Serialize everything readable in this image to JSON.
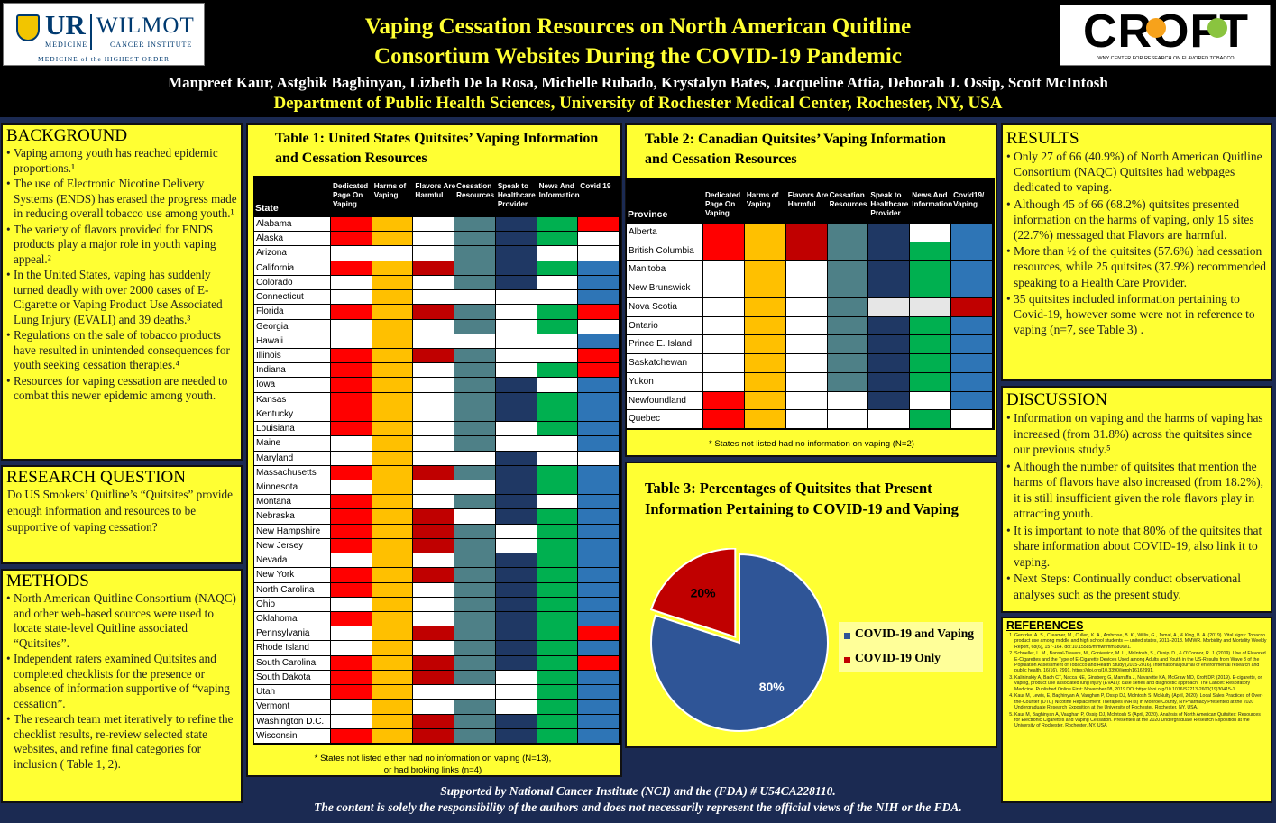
{
  "header": {
    "title_line1": "Vaping Cessation Resources on North American Quitline",
    "title_line2": "Consortium Websites During the COVID-19 Pandemic",
    "authors": "Manpreet Kaur, Astghik Baghinyan, Lizbeth De la Rosa, Michelle Rubado, Krystalyn Bates, Jacqueline Attia, Deborah J. Ossip, Scott McIntosh",
    "department": "Department of Public Health Sciences, University of Rochester Medical Center, Rochester, NY, USA",
    "logo_left": {
      "ur": "UR",
      "medicine": "MEDICINE",
      "wilmot": "WILMOT",
      "cancer": "CANCER INSTITUTE",
      "tagline": "MEDICINE of the HIGHEST ORDER"
    },
    "logo_right": {
      "name": "CROFT",
      "sub": "WNY CENTER FOR RESEARCH ON FLAVORED TOBACCO"
    }
  },
  "background": {
    "heading": "BACKGROUND",
    "items": [
      "Vaping among youth has reached epidemic proportions.¹",
      "The use of Electronic Nicotine Delivery Systems (ENDS) has erased the progress made in reducing overall tobacco use among youth.¹",
      "The variety of flavors provided for ENDS products play a major role in youth vaping appeal.²",
      "In the United States, vaping has suddenly turned deadly with over 2000 cases of E-Cigarette or Vaping Product Use Associated Lung Injury (EVALI) and 39 deaths.³",
      "Regulations on the sale of tobacco products have resulted in unintended consequences for youth seeking cessation therapies.⁴",
      "Resources for vaping cessation are needed to combat this newer epidemic among youth."
    ]
  },
  "research_question": {
    "heading": "RESEARCH QUESTION",
    "text": "Do US Smokers’ Quitline’s “Quitsites” provide enough information and resources to be supportive of vaping cessation?"
  },
  "methods": {
    "heading": "METHODS",
    "items": [
      "North American Quitline Consortium (NAQC) and other web-based sources were used to locate state-level Quitline associated “Quitsites”.",
      "Independent raters examined Quitsites and completed checklists for the presence or absence of information supportive of “vaping cessation”.",
      "The research team met iteratively to refine the checklist results, re-review selected state websites, and refine final categories for inclusion ( Table 1, 2)."
    ]
  },
  "colors": {
    "red": "#ff0000",
    "orange": "#ffc000",
    "darkred": "#c00000",
    "teal": "#4e8087",
    "navy": "#1f3864",
    "green": "#00b050",
    "blue": "#2e75b6",
    "white": "#ffffff",
    "grey": "#e6e6e6",
    "panel": "#ffff33",
    "pie_blue": "#2f5597",
    "pie_red": "#c00000"
  },
  "table1": {
    "title": "Table 1: United States Quitsites’ Vaping Information and Cessation Resources",
    "state_header": "State",
    "headers": [
      "Dedicated Page On Vaping",
      "Harms of Vaping",
      "Flavors Are Harmful",
      "Cessation Resources",
      "Speak to Healthcare Provider",
      "News And Information",
      "Covid 19"
    ],
    "rows": [
      {
        "name": "Alabama",
        "v": "ROWTNGR"
      },
      {
        "name": "Alaska",
        "v": "ROWTNGW"
      },
      {
        "name": "Arizona",
        "v": "WWWTNWW"
      },
      {
        "name": "California",
        "v": "RODTNGB"
      },
      {
        "name": "Colorado",
        "v": "WOWTNWB"
      },
      {
        "name": "Connecticut",
        "v": "WOWWWWB"
      },
      {
        "name": "Florida",
        "v": "RODTWGR"
      },
      {
        "name": "Georgia",
        "v": "WOWTWGW"
      },
      {
        "name": "Hawaii",
        "v": "WOWWWWB"
      },
      {
        "name": "Illinois",
        "v": "RODTWWR"
      },
      {
        "name": "Indiana",
        "v": "ROWTWGR"
      },
      {
        "name": "Iowa",
        "v": "ROWTNWB"
      },
      {
        "name": "Kansas",
        "v": "ROWTNGB"
      },
      {
        "name": "Kentucky",
        "v": "ROWTNGB"
      },
      {
        "name": "Louisiana",
        "v": "ROWTWGB"
      },
      {
        "name": "Maine",
        "v": "WOWTWWB"
      },
      {
        "name": "Maryland",
        "v": "WOWWNWW"
      },
      {
        "name": "Massachusetts",
        "v": "RODTNGB"
      },
      {
        "name": "Minnesota",
        "v": "WOWWNGB"
      },
      {
        "name": "Montana",
        "v": "ROWTNWB"
      },
      {
        "name": "Nebraska",
        "v": "RODWNGB"
      },
      {
        "name": "New Hampshire",
        "v": "RODTWGB"
      },
      {
        "name": "New Jersey",
        "v": "RODTWGB"
      },
      {
        "name": "Nevada",
        "v": "WOWTNGB"
      },
      {
        "name": "New York",
        "v": "RODTNGB"
      },
      {
        "name": "North Carolina",
        "v": "ROWTNGB"
      },
      {
        "name": "Ohio",
        "v": "WOWTNGB"
      },
      {
        "name": "Oklahoma",
        "v": "ROWTNGB"
      },
      {
        "name": "Pennsylvania",
        "v": "WODTNGR"
      },
      {
        "name": "Rhode Island",
        "v": "WOWTNGB"
      },
      {
        "name": "South Carolina",
        "v": "RODTNGR"
      },
      {
        "name": "South Dakota",
        "v": "RODTWGB"
      },
      {
        "name": "Utah",
        "v": "ROWWWGB"
      },
      {
        "name": "Vermont",
        "v": "WOWTWGB"
      },
      {
        "name": "Washington D.C.",
        "v": "WODTNGB"
      },
      {
        "name": "Wisconsin",
        "v": "RODTNGB"
      }
    ],
    "note": "* States not listed either had no information on vaping (N=13), or had broking links (n=4)"
  },
  "table2": {
    "title": "Table 2: Canadian Quitsites’ Vaping Information and Cessation Resources",
    "province_header": "Province",
    "headers": [
      "Dedicated Page On Vaping",
      "Harms of Vaping",
      "Flavors Are Harmful",
      "Cessation Resources",
      "Speak to Healthcare Provider",
      "News And Information",
      "Covid19/ Vaping"
    ],
    "rows": [
      {
        "name": "Alberta",
        "v": "RODTNWB"
      },
      {
        "name": "British Columbia",
        "v": "RODTNGB"
      },
      {
        "name": "Manitoba",
        "v": "WOWTNGB"
      },
      {
        "name": "New Brunswick",
        "v": "WOWTNGB"
      },
      {
        "name": "Nova Scotia",
        "v": "WOWTEED"
      },
      {
        "name": "Ontario",
        "v": "WOWTNGB"
      },
      {
        "name": "Prince E. Island",
        "v": "WOWTNGB"
      },
      {
        "name": "Saskatchewan",
        "v": "WOWTNGB"
      },
      {
        "name": "Yukon",
        "v": "WOWTNGB"
      },
      {
        "name": "Newfoundland",
        "v": "ROWWNWB"
      },
      {
        "name": "Quebec",
        "v": "ROWWWGW"
      }
    ],
    "note": "* States not listed had no information on vaping (N=2)"
  },
  "chart_data": {
    "type": "pie",
    "title": "Table 3: Percentages of Quitsites that Present Information Pertaining to COVID-19 and Vaping",
    "labels": [
      "COVID-19 and Vaping",
      "COVID-19 Only"
    ],
    "values": [
      80,
      20
    ],
    "value_labels": [
      "80%",
      "20%"
    ],
    "legend": "right",
    "colors": [
      "#2f5597",
      "#c00000"
    ]
  },
  "results": {
    "heading": "RESULTS",
    "items": [
      "Only 27 of 66 (40.9%) of North American Quitline Consortium (NAQC) Quitsites had webpages dedicated to vaping.",
      "Although 45 of 66 (68.2%) quitsites presented information on the harms of vaping, only 15 sites (22.7%) messaged that Flavors are harmful.",
      "More than ½ of the quitsites (57.6%) had cessation resources, while 25 quitsites (37.9%) recommended speaking to a Health Care Provider.",
      "35 quitsites included information pertaining to Covid-19, however some were not in reference to vaping (n=7, see Table 3) ."
    ]
  },
  "discussion": {
    "heading": "DISCUSSION",
    "items": [
      "Information on vaping and the harms of vaping has increased (from 31.8%) across the quitsites since our previous study.⁵",
      "Although the number of quitsites that mention the harms of flavors have also increased (from 18.2%), it is still insufficient given the role flavors play in attracting youth.",
      "It is important to note that 80% of the quitsites that share information about COVID-19, also link it to vaping.",
      "Next Steps: Continually conduct observational analyses such as the present study."
    ]
  },
  "references": {
    "heading": "REFERENCES",
    "items": [
      "Gentzke, A. S., Creamer, M., Cullen, K. A., Ambrose, B. K., Willis, G., Jamal, A., & King, B. A. (2019). Vital signs: Tobacco product use among middle and high school students — united states, 2011–2018. MMWR. Morbidity and Mortality Weekly Report, 68(6), 157-164. doi:10.15585/mmwr.mm6806e1.",
      "Schneller, L. M., Bansal-Travers, M., Goniewicz, M. L., McIntosh, S., Ossip, D., & O’Connor, R. J. (2019). Use of Flavored E-Cigarettes and the Type of E-Cigarette Devices Used among Adults and Youth in the US-Results from Wave 3 of the Population Assessment of Tobacco and Health Study (2015-2016). International journal of environmental research and public health, 16(16), 2991. https://doi.org/10.3390/ijerph16162991.",
      "Kalininskiy A, Bach CT, Nacca NE, Ginsberg G, Marraffa J, Navarette KA, McGraw MD, Croft DP. (2019). E-cigarette, or vaping, product use associated lung injury (EVALI): case series and diagnostic approach. The Lancet: Respiratory Medicine. Published Online First: November 08, 2019 DOI:https://doi.org/10.1016/S2213-2600(19)30415-1",
      "Kaur M, Lewis, E, Baghinyan A, Vaughan P, Ossip DJ, McIntosh S, McNulty (April, 2020). Local Sales Practices of Over-the-Counter (OTC) Nicotine Replacement Therapies (NRTs) in Monroe County, NYPharmacy Presented at the 2020 Undergraduate Research Exposition at the University of Rochester, Rochester, NY, USA.",
      "Kaur M, Baghinyan A, Vaughan P, Ossip DJ, McIntosh S (April, 2020). Analysis of North American Quitsites: Resources for Electronic Cigarettes and Vaping Cessation. Presented at the 2020 Undergraduate Research Exposition at the University of Rochester, Rochester, NY, USA"
    ]
  },
  "footer": {
    "line1": "Supported by National Cancer Institute (NCI) and the (FDA) # U54CA228110.",
    "line2": "The content is solely the responsibility of the authors and does not necessarily represent the official views of the NIH or the FDA."
  }
}
